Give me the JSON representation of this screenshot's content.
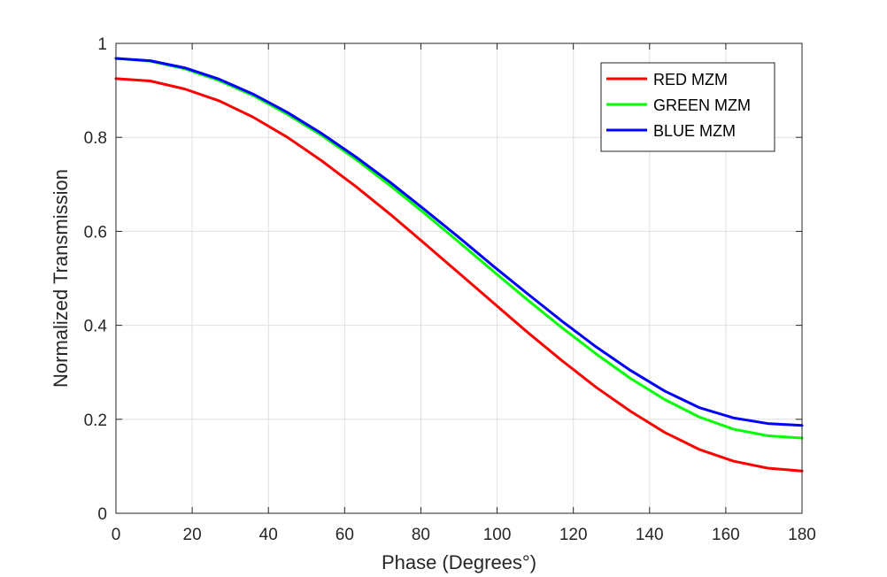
{
  "chart_data": {
    "type": "line",
    "title": "",
    "xlabel": "Phase (Degrees°)",
    "ylabel": "Normalized Transmission",
    "xlim": [
      0,
      180
    ],
    "ylim": [
      0,
      1
    ],
    "xticks": [
      0,
      20,
      40,
      60,
      80,
      100,
      120,
      140,
      160,
      180
    ],
    "yticks": [
      0,
      0.2,
      0.4,
      0.6,
      0.8,
      1
    ],
    "ytick_labels": [
      "0",
      "0.2",
      "0.4",
      "0.6",
      "0.8",
      "1"
    ],
    "grid": true,
    "legend_position": "top-right",
    "x": [
      0,
      9,
      18,
      27,
      36,
      45,
      54,
      63,
      72,
      81,
      90,
      99,
      108,
      117,
      126,
      135,
      144,
      153,
      162,
      171,
      180
    ],
    "series": [
      {
        "name": "RED MZM",
        "color": "#ff0000",
        "values": [
          0.925,
          0.92,
          0.903,
          0.878,
          0.843,
          0.8,
          0.75,
          0.695,
          0.636,
          0.574,
          0.511,
          0.448,
          0.385,
          0.325,
          0.268,
          0.217,
          0.172,
          0.136,
          0.111,
          0.096,
          0.09
        ]
      },
      {
        "name": "GREEN MZM",
        "color": "#00ff00",
        "values": [
          0.968,
          0.962,
          0.946,
          0.921,
          0.889,
          0.849,
          0.804,
          0.753,
          0.697,
          0.638,
          0.577,
          0.515,
          0.454,
          0.395,
          0.339,
          0.287,
          0.242,
          0.205,
          0.179,
          0.165,
          0.16
        ]
      },
      {
        "name": "BLUE MZM",
        "color": "#0000ff",
        "values": [
          0.968,
          0.963,
          0.948,
          0.924,
          0.892,
          0.853,
          0.808,
          0.758,
          0.704,
          0.646,
          0.587,
          0.526,
          0.467,
          0.409,
          0.354,
          0.304,
          0.26,
          0.225,
          0.203,
          0.191,
          0.187
        ]
      }
    ]
  }
}
